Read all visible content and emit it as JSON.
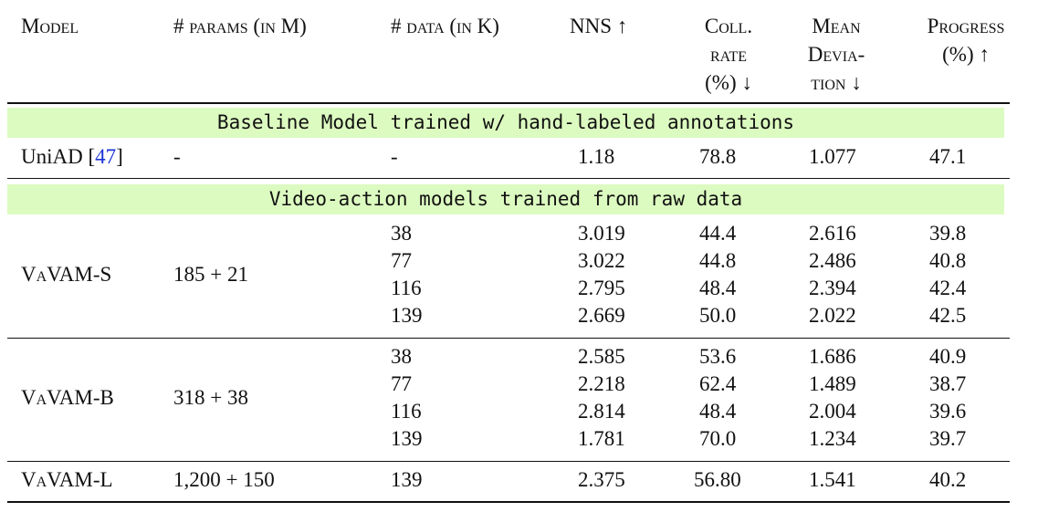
{
  "header": {
    "model": "Model",
    "params": "# params (in M)",
    "data": "# data (in K)",
    "nns": "NNS ↑",
    "coll_line1": "Coll.",
    "coll_line2": "rate",
    "coll_line3": "(%) ↓",
    "mean_line1": "Mean",
    "mean_line2": "Devia-",
    "mean_line3": "tion ↓",
    "progress_line1": "Progress",
    "progress_line2": "(%) ↑"
  },
  "baseline_band": "Baseline Model trained w/ hand-labeled annotations",
  "baseline_row": {
    "model": "UniAD",
    "cite_open": "[",
    "cite": "47",
    "cite_close": "]",
    "params": "-",
    "data": "-",
    "nns": "1.18",
    "coll": "78.8",
    "mean": "1.077",
    "progress": "47.1"
  },
  "video_band": "Video-action models trained from raw data",
  "groups": [
    {
      "model": "VaVAM-S",
      "params": "185 + 21",
      "rows": [
        {
          "data": "38",
          "nns": "3.019",
          "coll": "44.4",
          "mean": "2.616",
          "progress": "39.8"
        },
        {
          "data": "77",
          "nns": "3.022",
          "coll": "44.8",
          "mean": "2.486",
          "progress": "40.8"
        },
        {
          "data": "116",
          "nns": "2.795",
          "coll": "48.4",
          "mean": "2.394",
          "progress": "42.4"
        },
        {
          "data": "139",
          "nns": "2.669",
          "coll": "50.0",
          "mean": "2.022",
          "progress": "42.5"
        }
      ]
    },
    {
      "model": "VaVAM-B",
      "params": "318 + 38",
      "rows": [
        {
          "data": "38",
          "nns": "2.585",
          "coll": "53.6",
          "mean": "1.686",
          "progress": "40.9"
        },
        {
          "data": "77",
          "nns": "2.218",
          "coll": "62.4",
          "mean": "1.489",
          "progress": "38.7"
        },
        {
          "data": "116",
          "nns": "2.814",
          "coll": "48.4",
          "mean": "2.004",
          "progress": "39.6"
        },
        {
          "data": "139",
          "nns": "1.781",
          "coll": "70.0",
          "mean": "1.234",
          "progress": "39.7"
        }
      ]
    },
    {
      "model": "VaVAM-L",
      "params": "1,200 + 150",
      "rows": [
        {
          "data": "139",
          "nns": "2.375",
          "coll": "56.80",
          "mean": "1.541",
          "progress": "40.2"
        }
      ]
    }
  ]
}
